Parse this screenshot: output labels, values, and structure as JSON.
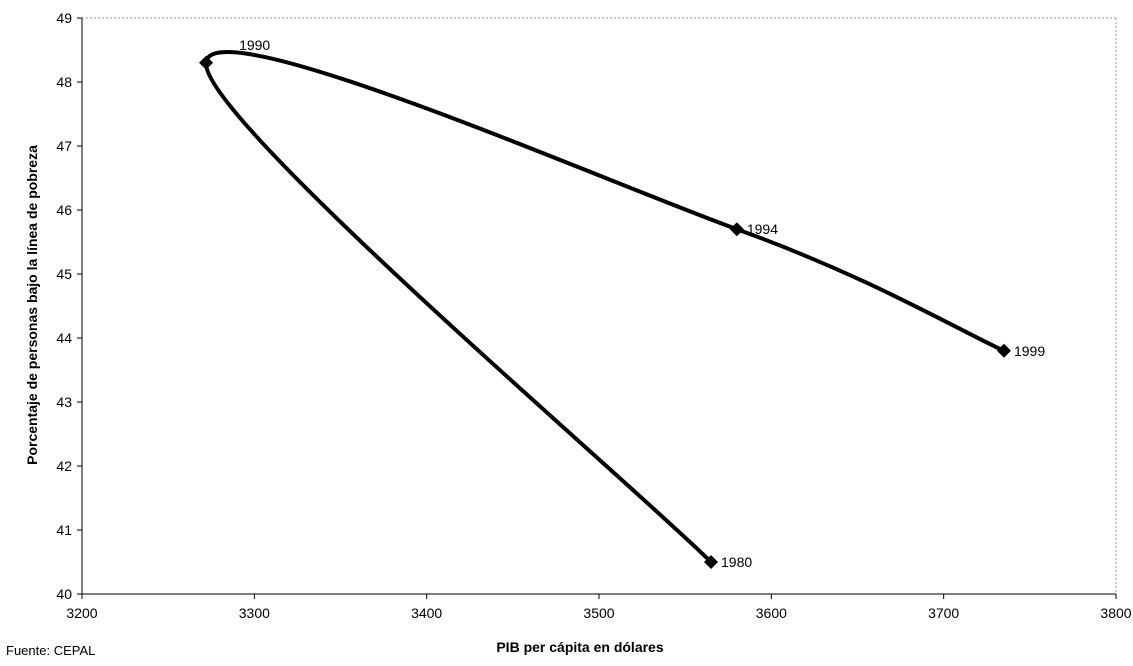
{
  "chart_data": {
    "type": "line",
    "xlabel": "PIB per cápita  en dólares",
    "ylabel": "Porcentaje de personas bajo la línea de pobreza",
    "xlim": [
      3200,
      3800
    ],
    "ylim": [
      40,
      49
    ],
    "x_ticks": [
      "3200",
      "3300",
      "3400",
      "3500",
      "3600",
      "3700",
      "3800"
    ],
    "y_ticks": [
      "40",
      "41",
      "42",
      "43",
      "44",
      "45",
      "46",
      "47",
      "48",
      "49"
    ],
    "grid": false,
    "series": [
      {
        "points": [
          {
            "label": "1980",
            "x": 3565,
            "y": 40.5
          },
          {
            "label": "1990",
            "x": 3272,
            "y": 48.3
          },
          {
            "label": "1994",
            "x": 3580,
            "y": 45.7
          },
          {
            "label": "1999",
            "x": 3735,
            "y": 43.8
          }
        ]
      }
    ],
    "line_color": "#000000",
    "marker": "diamond"
  },
  "source_note": "Fuente: CEPAL"
}
